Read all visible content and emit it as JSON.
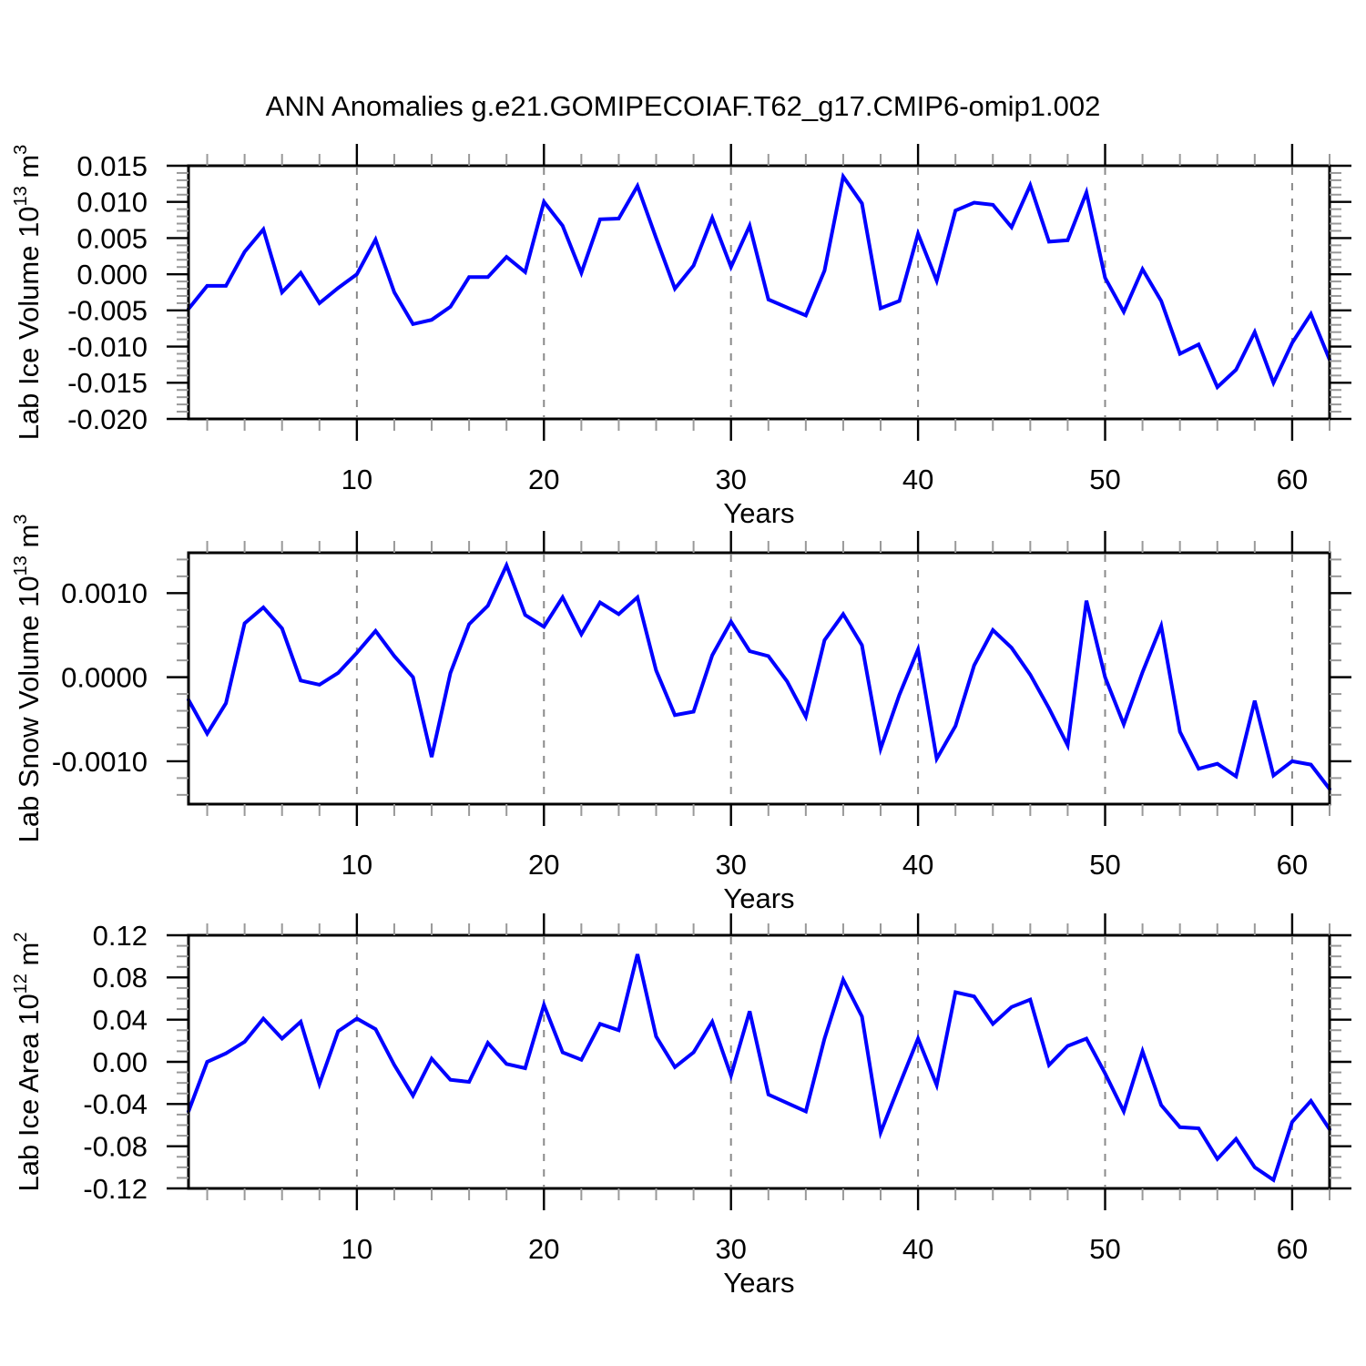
{
  "title": "ANN Anomalies g.e21.GOMIPECOIAF.T62_g17.CMIP6-omip1.002",
  "colors": {
    "line": "#0000FF",
    "axis": "#000000",
    "grid_dashed": "#8a8a8a",
    "minor_tick": "#999999",
    "background": "#FFFFFF"
  },
  "chart_data": [
    {
      "type": "line",
      "title": "",
      "ylabel": "Lab Ice Volume 10^13 m^3",
      "ylabel_parts": [
        {
          "t": "Lab Ice Volume 10"
        },
        {
          "t": "13",
          "sup": true
        },
        {
          "t": " m"
        },
        {
          "t": "3",
          "sup": true
        }
      ],
      "xlabel": "Years",
      "x_start": 1,
      "x_end": 62,
      "xlim": [
        1,
        62
      ],
      "ylim": [
        -0.02,
        0.015
      ],
      "grid": "vertical-dashed",
      "legend": "none",
      "xticks": [
        {
          "value": 10,
          "label": "10"
        },
        {
          "value": 20,
          "label": "20"
        },
        {
          "value": 30,
          "label": "30"
        },
        {
          "value": 40,
          "label": "40"
        },
        {
          "value": 50,
          "label": "50"
        },
        {
          "value": 60,
          "label": "60"
        }
      ],
      "x_minor_step": 2,
      "yticks": [
        {
          "value": 0.015,
          "label": "0.015"
        },
        {
          "value": 0.01,
          "label": "0.010"
        },
        {
          "value": 0.005,
          "label": "0.005"
        },
        {
          "value": 0.0,
          "label": "0.000"
        },
        {
          "value": -0.005,
          "label": "-0.005"
        },
        {
          "value": -0.01,
          "label": "-0.010"
        },
        {
          "value": -0.015,
          "label": "-0.015"
        },
        {
          "value": -0.02,
          "label": "-0.020"
        }
      ],
      "y_minor_step": 0.001,
      "values": [
        -0.0048,
        -0.0016,
        -0.0016,
        0.0031,
        0.0062,
        -0.0025,
        0.0002,
        -0.004,
        -0.0019,
        0.0,
        0.0048,
        -0.0025,
        -0.0069,
        -0.0063,
        -0.0045,
        -0.0004,
        -0.0004,
        0.0024,
        0.0003,
        0.01,
        0.0067,
        0.0002,
        0.0076,
        0.0077,
        0.0122,
        0.005,
        -0.002,
        0.0012,
        0.0078,
        0.001,
        0.0067,
        -0.0035,
        -0.0046,
        -0.0057,
        0.0005,
        0.0135,
        0.0098,
        -0.0047,
        -0.0037,
        0.0056,
        -0.0009,
        0.0088,
        0.0099,
        0.0096,
        0.0065,
        0.0123,
        0.0045,
        0.0047,
        0.0113,
        -0.0005,
        -0.0052,
        0.0007,
        -0.0037,
        -0.011,
        -0.0097,
        -0.0156,
        -0.0132,
        -0.008,
        -0.015,
        -0.0095,
        -0.0055,
        -0.0118
      ]
    },
    {
      "type": "line",
      "title": "",
      "ylabel": "Lab Snow Volume 10^13 m^3",
      "ylabel_parts": [
        {
          "t": "Lab Snow Volume 10"
        },
        {
          "t": "13",
          "sup": true
        },
        {
          "t": " m"
        },
        {
          "t": "3",
          "sup": true
        }
      ],
      "xlabel": "Years",
      "x_start": 1,
      "x_end": 62,
      "xlim": [
        1,
        62
      ],
      "ylim": [
        -0.00151,
        0.00148
      ],
      "grid": "vertical-dashed",
      "legend": "none",
      "xticks": [
        {
          "value": 10,
          "label": "10"
        },
        {
          "value": 20,
          "label": "20"
        },
        {
          "value": 30,
          "label": "30"
        },
        {
          "value": 40,
          "label": "40"
        },
        {
          "value": 50,
          "label": "50"
        },
        {
          "value": 60,
          "label": "60"
        }
      ],
      "x_minor_step": 2,
      "yticks": [
        {
          "value": 0.001,
          "label": "0.0010"
        },
        {
          "value": 0.0,
          "label": "0.0000"
        },
        {
          "value": -0.001,
          "label": "-0.0010"
        }
      ],
      "y_minor_step": 0.0002,
      "values": [
        -0.00027,
        -0.00067,
        -0.00031,
        0.00064,
        0.00083,
        0.00058,
        -4e-05,
        -9e-05,
        5e-05,
        0.00029,
        0.00055,
        0.00025,
        0.0,
        -0.00095,
        5e-05,
        0.00063,
        0.00085,
        0.00133,
        0.00074,
        0.0006,
        0.00095,
        0.00051,
        0.00089,
        0.00075,
        0.00095,
        8e-05,
        -0.00045,
        -0.00041,
        0.00026,
        0.00066,
        0.00031,
        0.00025,
        -5e-05,
        -0.00047,
        0.00044,
        0.00075,
        0.00038,
        -0.00085,
        -0.00021,
        0.00033,
        -0.00097,
        -0.00058,
        0.00014,
        0.00056,
        0.00035,
        3e-05,
        -0.00037,
        -0.00081,
        0.00091,
        0.0,
        -0.00056,
        6e-05,
        0.00061,
        -0.00065,
        -0.00109,
        -0.00103,
        -0.00118,
        -0.00028,
        -0.00117,
        -0.001,
        -0.00104,
        -0.00133
      ]
    },
    {
      "type": "line",
      "title": "",
      "ylabel": "Lab Ice Area 10^12 m^2",
      "ylabel_parts": [
        {
          "t": "Lab Ice Area 10"
        },
        {
          "t": "12",
          "sup": true
        },
        {
          "t": " m"
        },
        {
          "t": "2",
          "sup": true
        }
      ],
      "xlabel": "Years",
      "x_start": 1,
      "x_end": 62,
      "xlim": [
        1,
        62
      ],
      "ylim": [
        -0.12,
        0.12
      ],
      "grid": "vertical-dashed",
      "legend": "none",
      "xticks": [
        {
          "value": 10,
          "label": "10"
        },
        {
          "value": 20,
          "label": "20"
        },
        {
          "value": 30,
          "label": "30"
        },
        {
          "value": 40,
          "label": "40"
        },
        {
          "value": 50,
          "label": "50"
        },
        {
          "value": 60,
          "label": "60"
        }
      ],
      "x_minor_step": 2,
      "yticks": [
        {
          "value": 0.12,
          "label": "0.12"
        },
        {
          "value": 0.08,
          "label": "0.08"
        },
        {
          "value": 0.04,
          "label": "0.04"
        },
        {
          "value": 0.0,
          "label": "0.00"
        },
        {
          "value": -0.04,
          "label": "-0.04"
        },
        {
          "value": -0.08,
          "label": "-0.08"
        },
        {
          "value": -0.12,
          "label": "-0.12"
        }
      ],
      "y_minor_step": 0.01,
      "values": [
        -0.047,
        0.0,
        0.008,
        0.019,
        0.041,
        0.022,
        0.038,
        -0.021,
        0.029,
        0.041,
        0.031,
        -0.003,
        -0.032,
        0.003,
        -0.017,
        -0.019,
        0.018,
        -0.002,
        -0.006,
        0.054,
        0.009,
        0.002,
        0.036,
        0.03,
        0.102,
        0.024,
        -0.005,
        0.009,
        0.038,
        -0.013,
        0.048,
        -0.031,
        -0.039,
        -0.047,
        0.022,
        0.078,
        0.043,
        -0.067,
        -0.022,
        0.022,
        -0.022,
        0.066,
        0.062,
        0.036,
        0.052,
        0.059,
        -0.003,
        0.015,
        0.022,
        -0.011,
        -0.047,
        0.01,
        -0.041,
        -0.062,
        -0.063,
        -0.092,
        -0.073,
        -0.1,
        -0.112,
        -0.057,
        -0.037,
        -0.064
      ]
    }
  ]
}
